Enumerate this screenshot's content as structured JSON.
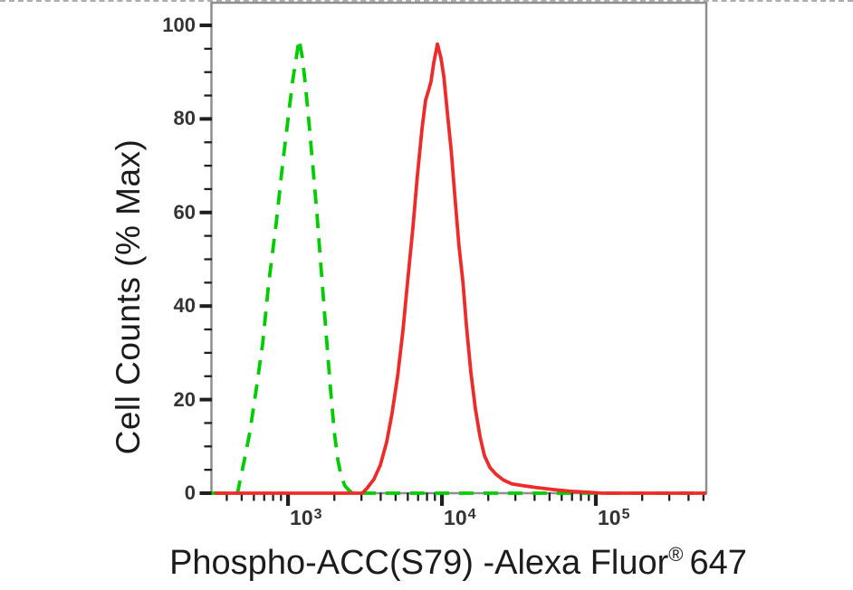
{
  "chart_data": {
    "type": "line",
    "title": "",
    "ylabel": "Cell Counts (% Max)",
    "xlabel": {
      "text": "Phospho-ACC(S79) -Alexa Fluor",
      "registered_symbol": "®",
      "suffix": "647"
    },
    "grid": false,
    "legend": null,
    "frame_color": "#8f8f8f",
    "tick_color": "#1f1f1f",
    "x_axis": {
      "scale": "log",
      "range": [
        318,
        522000
      ],
      "major_ticks": [
        {
          "value": 1000,
          "base": "10",
          "exponent": "3"
        },
        {
          "value": 10000,
          "base": "10",
          "exponent": "4"
        },
        {
          "value": 100000,
          "base": "10",
          "exponent": "5"
        }
      ],
      "minor_tick_mantissas": [
        2,
        3,
        4,
        5,
        6,
        7,
        8,
        9
      ]
    },
    "y_axis": {
      "range": [
        0,
        100
      ],
      "major_ticks": [
        0,
        20,
        40,
        60,
        80,
        100
      ],
      "minor_tick_step": 5
    },
    "series": [
      {
        "id": "green-dashed-histogram",
        "line_style": "dashed",
        "color": "#00cc00",
        "points": [
          [
            318,
            0
          ],
          [
            470,
            0
          ],
          [
            490,
            3
          ],
          [
            520,
            7
          ],
          [
            565,
            13
          ],
          [
            620,
            22
          ],
          [
            685,
            32
          ],
          [
            750,
            45
          ],
          [
            840,
            58
          ],
          [
            920,
            70
          ],
          [
            1000,
            80
          ],
          [
            1070,
            88
          ],
          [
            1130,
            93
          ],
          [
            1180,
            97
          ],
          [
            1240,
            93
          ],
          [
            1300,
            87
          ],
          [
            1370,
            79
          ],
          [
            1440,
            71
          ],
          [
            1540,
            60
          ],
          [
            1650,
            47
          ],
          [
            1770,
            34
          ],
          [
            1890,
            22
          ],
          [
            2000,
            13
          ],
          [
            2110,
            7
          ],
          [
            2220,
            3.5
          ],
          [
            2350,
            1.5
          ],
          [
            2510,
            0.5
          ],
          [
            2650,
            0
          ],
          [
            522000,
            0
          ]
        ]
      },
      {
        "id": "red-solid-histogram",
        "line_style": "solid",
        "color": "#ee2b2b",
        "points": [
          [
            334,
            0
          ],
          [
            3040,
            0
          ],
          [
            3250,
            1
          ],
          [
            3620,
            3
          ],
          [
            3980,
            6
          ],
          [
            4380,
            11
          ],
          [
            4740,
            17
          ],
          [
            5150,
            25
          ],
          [
            5590,
            35
          ],
          [
            5970,
            45
          ],
          [
            6490,
            57
          ],
          [
            6930,
            68
          ],
          [
            7430,
            78
          ],
          [
            7830,
            84
          ],
          [
            8170,
            86
          ],
          [
            8490,
            88
          ],
          [
            8850,
            92
          ],
          [
            9350,
            96
          ],
          [
            9860,
            93
          ],
          [
            10300,
            89
          ],
          [
            10800,
            82
          ],
          [
            11500,
            73
          ],
          [
            12100,
            64
          ],
          [
            12900,
            53
          ],
          [
            13700,
            45
          ],
          [
            14400,
            36
          ],
          [
            15400,
            26
          ],
          [
            16500,
            18
          ],
          [
            17700,
            12
          ],
          [
            18900,
            8
          ],
          [
            20500,
            5.5
          ],
          [
            22500,
            4
          ],
          [
            25100,
            2.8
          ],
          [
            28400,
            2
          ],
          [
            33800,
            1.6
          ],
          [
            40900,
            1.2
          ],
          [
            52200,
            0.8
          ],
          [
            68400,
            0.4
          ],
          [
            89700,
            0.2
          ],
          [
            110000,
            0
          ],
          [
            522000,
            0
          ]
        ]
      }
    ]
  }
}
